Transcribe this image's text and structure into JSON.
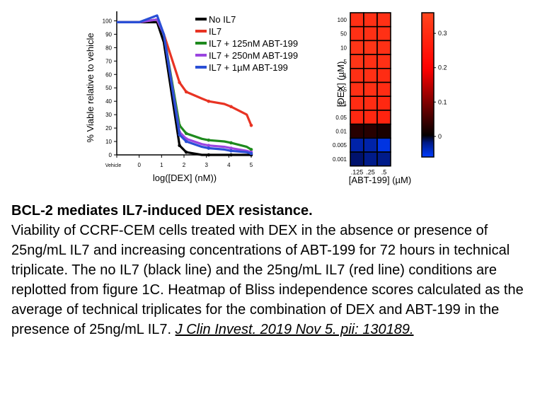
{
  "chart_data": [
    {
      "type": "line",
      "xlabel": "log([DEX] (nM))",
      "ylabel": "% Viable relative to vehicle",
      "categories": [
        "Vehicle",
        "0",
        "1",
        "2",
        "3",
        "4",
        "5"
      ],
      "x": [
        -1,
        0,
        0.8,
        1.1,
        1.8,
        2.1,
        2.8,
        3.1,
        3.8,
        4.1,
        4.8,
        5
      ],
      "yticks": [
        0,
        10,
        20,
        30,
        40,
        50,
        60,
        70,
        80,
        90,
        100
      ],
      "ylim": [
        0,
        105
      ],
      "legend_position": "top-right",
      "series": [
        {
          "name": "No IL7",
          "color": "#000000",
          "values": [
            99,
            99,
            99,
            84,
            7,
            2,
            0,
            0,
            0,
            0,
            0,
            0
          ]
        },
        {
          "name": "IL7",
          "color": "#e83323",
          "values": [
            99,
            99,
            101,
            90,
            54,
            47,
            42,
            40,
            38,
            36,
            30,
            22
          ]
        },
        {
          "name": "IL7 + 125nM ABT-199",
          "color": "#1e8a1e",
          "values": [
            99,
            99,
            101,
            90,
            22,
            16,
            12,
            11,
            10,
            9,
            6,
            4
          ]
        },
        {
          "name": "IL7 + 250nM ABT-199",
          "color": "#9b45e0",
          "values": [
            99,
            99,
            101,
            90,
            17,
            12,
            8,
            7,
            6,
            5,
            3,
            2
          ]
        },
        {
          "name": "IL7 + 1µM ABT-199",
          "color": "#2a4fd6",
          "values": [
            99,
            99,
            104,
            90,
            15,
            10,
            6,
            5,
            4,
            3,
            2,
            1
          ]
        }
      ]
    },
    {
      "type": "heatmap",
      "xlabel": "[ABT-199] (µM)",
      "ylabel": "[DEX] (µM)",
      "x_categories": [
        ".125",
        ".25",
        ".5"
      ],
      "y_categories": [
        "100",
        "50",
        "10",
        "5",
        "1",
        "0.5",
        "0.1",
        "0.05",
        "0.01",
        "0.005",
        "0.001"
      ],
      "values": [
        [
          0.31,
          0.31,
          0.31
        ],
        [
          0.31,
          0.31,
          0.31
        ],
        [
          0.32,
          0.32,
          0.31
        ],
        [
          0.32,
          0.31,
          0.31
        ],
        [
          0.31,
          0.31,
          0.3
        ],
        [
          0.31,
          0.31,
          0.3
        ],
        [
          0.3,
          0.3,
          0.29
        ],
        [
          0.29,
          0.29,
          0.28
        ],
        [
          0.03,
          0.03,
          0.02
        ],
        [
          -0.03,
          -0.03,
          -0.05
        ],
        [
          -0.01,
          -0.02,
          -0.02
        ]
      ],
      "colorbar_ticks": [
        0,
        0.1,
        0.2,
        0.3
      ],
      "colorbar_tick_labels": [
        "0",
        "0.1",
        "0.2",
        "0.3"
      ],
      "colorbar_range": [
        -0.06,
        0.36
      ]
    }
  ],
  "caption": {
    "title": "BCL-2 mediates IL7-induced DEX resistance.",
    "body": "Viability of CCRF-CEM cells treated with DEX in the absence or presence of 25ng/mL IL7 and increasing concentrations of ABT-199 for 72 hours in technical triplicate. The no IL7 (black line) and the 25ng/mL IL7 (red line) conditions are replotted from figure 1C. Heatmap of Bliss independence scores calculated as the average of technical triplicates for the combination of DEX and ABT-199 in the presence of 25ng/mL IL7.",
    "citation": "J Clin Invest. 2019 Nov 5. pii: 130189."
  }
}
